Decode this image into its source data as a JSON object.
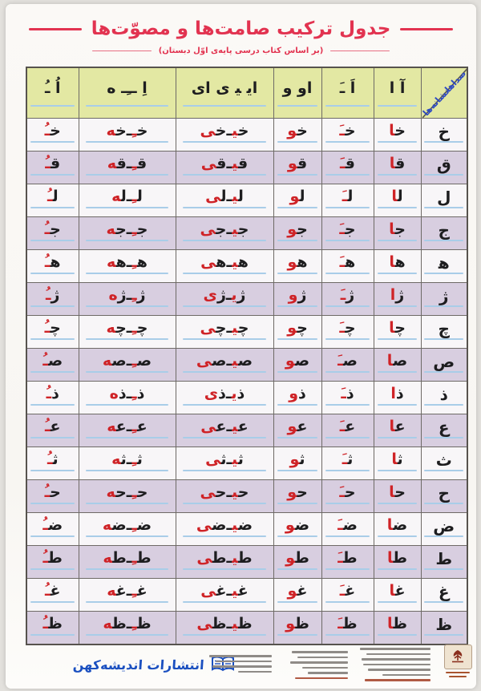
{
  "title": "جدول ترکیب صامت‌ها و مصوّت‌ها",
  "subtitle": "(بر اساس کتاب درسی پایه‌ی اوّل دبستان)",
  "colors": {
    "title_red": "#e23350",
    "header_bg": "#e3e8a3",
    "row_lavender": "#d8cee0",
    "row_light": "#f8f6f8",
    "letter_black": "#1d1d1f",
    "vowel_red": "#cf2327",
    "baseline_blue": "#a9cde8",
    "corner_handwriting_blue": "#2c49c3",
    "publisher_blue": "#1a4fc0"
  },
  "table": {
    "corner": {
      "top": "صداها",
      "bottom": "نشانه‌ها"
    },
    "vowel_headers": [
      "آ ا",
      "اَ ـَ",
      "او و",
      "ای‍ ‍ی‍ ی ای",
      "اِ ــِـ ه",
      "اُ ـُ"
    ],
    "cell_patterns": [
      [
        {
          "s": "ا",
          "c": "r"
        }
      ],
      [
        {
          "s": "ـَ",
          "c": "r"
        }
      ],
      [
        {
          "s": "و",
          "c": "r"
        }
      ],
      [
        {
          "s": "ی‍",
          "c": "r"
        },
        {
          "dash": true
        },
        {
          "letter": true
        },
        {
          "s": "ی",
          "c": "r"
        }
      ],
      [
        {
          "s": "ـِ",
          "c": "r"
        },
        {
          "dash": true
        },
        {
          "letter": true
        },
        {
          "s": "ه",
          "c": "r"
        }
      ],
      [
        {
          "s": "ـُ",
          "c": "r"
        }
      ]
    ],
    "rows": [
      {
        "letter": "خ",
        "joins": true
      },
      {
        "letter": "ق",
        "joins": true
      },
      {
        "letter": "ل",
        "joins": true
      },
      {
        "letter": "ج",
        "joins": true
      },
      {
        "letter": "ه",
        "joins": true,
        "display": "ه‍"
      },
      {
        "letter": "ژ",
        "joins": false
      },
      {
        "letter": "چ",
        "joins": true
      },
      {
        "letter": "ص",
        "joins": true
      },
      {
        "letter": "ذ",
        "joins": false
      },
      {
        "letter": "ع",
        "joins": true
      },
      {
        "letter": "ث",
        "joins": true
      },
      {
        "letter": "ح",
        "joins": true
      },
      {
        "letter": "ض",
        "joins": true
      },
      {
        "letter": "ط",
        "joins": true
      },
      {
        "letter": "غ",
        "joins": true
      },
      {
        "letter": "ظ",
        "joins": true
      }
    ]
  },
  "footer": {
    "publisher": "انتشارات اندیشه‌کهن"
  }
}
